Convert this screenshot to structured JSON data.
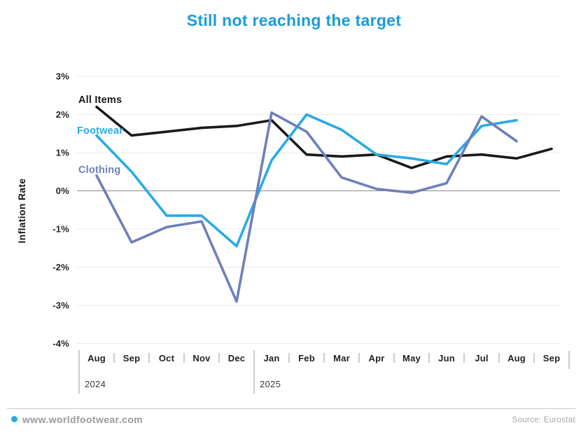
{
  "title": "Still not reaching the target",
  "footer": {
    "site": "www.worldfootwear.com",
    "source": "Source: Eurostat",
    "bullet_color": "#29abe2"
  },
  "chart_data": {
    "type": "line",
    "title": "Still not reaching the target",
    "xlabel": "",
    "ylabel": "Inflation Rate",
    "ylim": [
      -4,
      3
    ],
    "grid": "horizontal",
    "legend_position": "inline-left",
    "x_categories": [
      "Aug",
      "Sep",
      "Oct",
      "Nov",
      "Dec",
      "Jan",
      "Feb",
      "Mar",
      "Apr",
      "May",
      "Jun",
      "Jul",
      "Aug",
      "Sep"
    ],
    "year_labels": [
      {
        "label": "2024",
        "at_index": 0
      },
      {
        "label": "2025",
        "at_index": 5
      }
    ],
    "yticks": [
      "3%",
      "2%",
      "1%",
      "0%",
      "-1%",
      "-2%",
      "-3%",
      "-4%"
    ],
    "ytick_values": [
      3,
      2,
      1,
      0,
      -1,
      -2,
      -3,
      -4
    ],
    "series": [
      {
        "name": "All Items",
        "color": "#1a1a1a",
        "values": [
          2.2,
          1.45,
          1.55,
          1.65,
          1.7,
          1.85,
          0.95,
          0.9,
          0.95,
          0.6,
          0.9,
          0.95,
          0.85,
          1.1
        ]
      },
      {
        "name": "Footwear",
        "color": "#29abe2",
        "values": [
          1.45,
          0.5,
          -0.65,
          -0.65,
          -1.45,
          0.8,
          2.0,
          1.6,
          0.95,
          0.85,
          0.7,
          1.7,
          1.85,
          null
        ]
      },
      {
        "name": "Clothing",
        "color": "#6e80ba",
        "values": [
          0.4,
          -1.35,
          -0.95,
          -0.8,
          -2.9,
          2.05,
          1.55,
          0.35,
          0.05,
          -0.05,
          0.2,
          1.95,
          1.3,
          null
        ]
      }
    ],
    "colors": {
      "grid": "#eaeaea",
      "zero_line": "#8c8c8c",
      "axis_separator": "#9a9a9a",
      "title": "#1a9cd8"
    }
  }
}
